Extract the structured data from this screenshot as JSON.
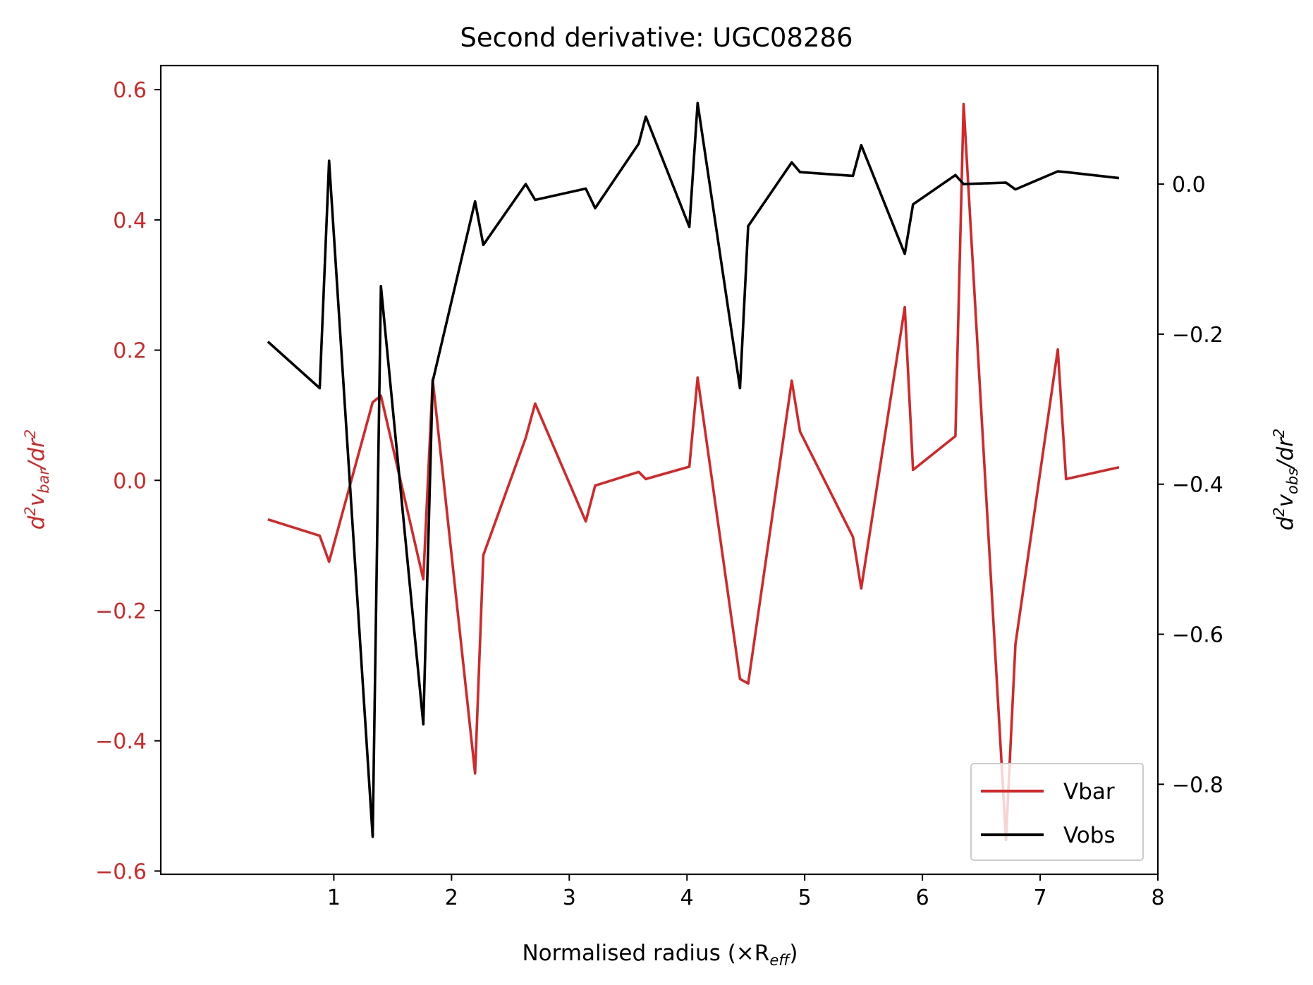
{
  "chart_data": {
    "type": "line",
    "title": "Second derivative: UGC08286",
    "xlabel": "Normalised radius (×R",
    "xlabel_sub": "eff",
    "xlabel_close": ")",
    "ylabel_left": {
      "d": "d",
      "sup": "2",
      "v": "v",
      "sub": "bar",
      "rest": "/dr",
      "sup2": "2"
    },
    "ylabel_right": {
      "d": "d",
      "sup": "2",
      "v": "v",
      "sub": "obs",
      "rest": "/dr",
      "sup2": "2"
    },
    "xlim": [
      -0.47,
      8.0
    ],
    "ylim_left": [
      -0.605,
      0.637
    ],
    "ylim_right": [
      -0.92,
      0.158
    ],
    "xticks": [
      1,
      2,
      3,
      4,
      5,
      6,
      7,
      8
    ],
    "yticks_left": [
      -0.6,
      -0.4,
      -0.2,
      0.0,
      0.2,
      0.4,
      0.6
    ],
    "yticks_left_labels": [
      "−0.6",
      "−0.4",
      "−0.2",
      "0.0",
      "0.2",
      "0.4",
      "0.6"
    ],
    "yticks_right": [
      -0.8,
      -0.6,
      -0.4,
      -0.2,
      0.0
    ],
    "yticks_right_labels": [
      "−0.8",
      "−0.6",
      "−0.4",
      "−0.2",
      "0.0"
    ],
    "legend_position": "lower-right",
    "grid": false,
    "series": [
      {
        "name": "Vbar",
        "axis": "left",
        "color": "#d62728",
        "x": [
          0.44,
          0.88,
          0.96,
          1.33,
          1.4,
          1.76,
          1.84,
          2.2,
          2.27,
          2.63,
          2.71,
          3.14,
          3.22,
          3.59,
          3.65,
          4.02,
          4.09,
          4.45,
          4.52,
          4.89,
          4.96,
          5.41,
          5.48,
          5.85,
          5.92,
          6.28,
          6.35,
          6.71,
          6.79,
          7.15,
          7.22,
          7.67
        ],
        "y": [
          -0.06,
          -0.085,
          -0.125,
          0.12,
          0.13,
          -0.152,
          0.155,
          -0.45,
          -0.115,
          0.065,
          0.118,
          -0.063,
          -0.008,
          0.013,
          0.002,
          0.021,
          0.158,
          -0.305,
          -0.312,
          0.153,
          0.075,
          -0.087,
          -0.166,
          0.266,
          0.016,
          0.068,
          0.578,
          -0.552,
          -0.252,
          0.201,
          0.002,
          0.02
        ]
      },
      {
        "name": "Vobs",
        "axis": "right",
        "color": "#000000",
        "x": [
          0.44,
          0.88,
          0.96,
          1.33,
          1.4,
          1.76,
          1.84,
          2.2,
          2.27,
          2.63,
          2.71,
          3.14,
          3.22,
          3.59,
          3.65,
          4.02,
          4.09,
          4.45,
          4.52,
          4.89,
          4.96,
          5.41,
          5.48,
          5.85,
          5.92,
          6.28,
          6.35,
          6.71,
          6.79,
          7.15,
          7.22,
          7.67
        ],
        "y": [
          -0.21,
          -0.272,
          0.031,
          -0.87,
          -0.136,
          -0.72,
          -0.263,
          -0.023,
          -0.081,
          0.0,
          -0.021,
          -0.006,
          -0.032,
          0.054,
          0.09,
          -0.057,
          0.108,
          -0.272,
          -0.056,
          0.029,
          0.016,
          0.011,
          0.052,
          -0.093,
          -0.027,
          0.012,
          0.0,
          0.002,
          -0.007,
          0.017,
          0.016,
          0.008
        ]
      }
    ]
  },
  "colors": {
    "left_axis": "#d62728",
    "right_axis": "#000000"
  }
}
